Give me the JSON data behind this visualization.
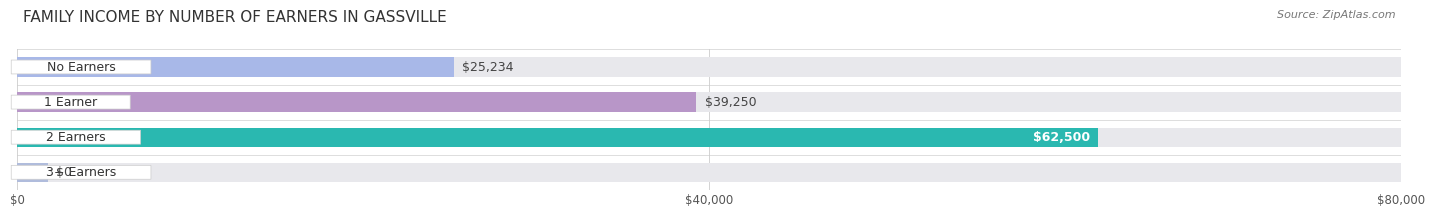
{
  "title": "FAMILY INCOME BY NUMBER OF EARNERS IN GASSVILLE",
  "source": "Source: ZipAtlas.com",
  "categories": [
    "No Earners",
    "1 Earner",
    "2 Earners",
    "3+ Earners"
  ],
  "values": [
    25234,
    39250,
    62500,
    0
  ],
  "bar_colors": [
    "#a8b8e8",
    "#b896c8",
    "#2ab8b0",
    "#b0bcdc"
  ],
  "label_colors": [
    "#333333",
    "#333333",
    "#ffffff",
    "#333333"
  ],
  "value_labels": [
    "$25,234",
    "$39,250",
    "$62,500",
    "$0"
  ],
  "xlim": [
    0,
    80000
  ],
  "xticks": [
    0,
    40000,
    80000
  ],
  "xtick_labels": [
    "$0",
    "$40,000",
    "$80,000"
  ],
  "background_color": "#ffffff",
  "bar_background_color": "#e8e8ec",
  "title_fontsize": 11,
  "source_fontsize": 8,
  "label_fontsize": 9,
  "value_fontsize": 9
}
